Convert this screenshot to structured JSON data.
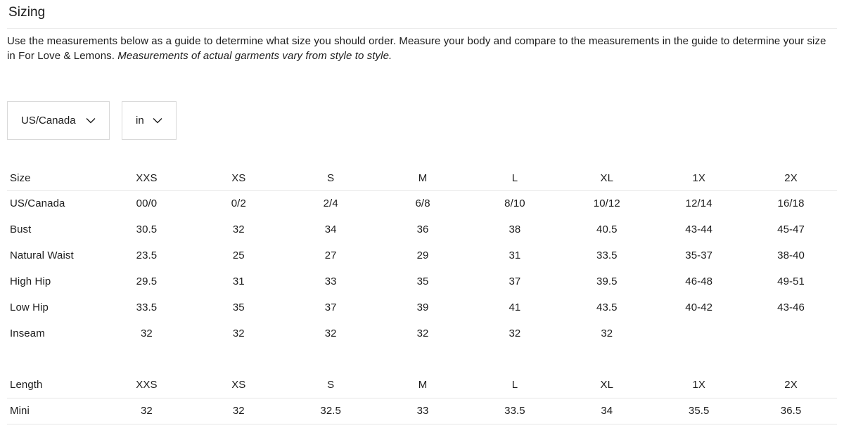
{
  "page": {
    "title": "Sizing",
    "description_regular": "Use the measurements below as a guide to determine what size you should order. Measure your body and compare to the measurements in the guide to determine your size in For Love & Lemons. ",
    "description_italic": "Measurements of actual garments vary from style to style."
  },
  "filters": {
    "region_select": {
      "value": "US/Canada",
      "icon": "chevron-down-icon"
    },
    "unit_select": {
      "value": "in",
      "icon": "chevron-down-icon"
    }
  },
  "size_table": {
    "header": [
      "Size",
      "XXS",
      "XS",
      "S",
      "M",
      "L",
      "XL",
      "1X",
      "2X"
    ],
    "rows": [
      {
        "label": "US/Canada",
        "values": [
          "00/0",
          "0/2",
          "2/4",
          "6/8",
          "8/10",
          "10/12",
          "12/14",
          "16/18"
        ]
      },
      {
        "label": "Bust",
        "values": [
          "30.5",
          "32",
          "34",
          "36",
          "38",
          "40.5",
          "43-44",
          "45-47"
        ]
      },
      {
        "label": "Natural Waist",
        "values": [
          "23.5",
          "25",
          "27",
          "29",
          "31",
          "33.5",
          "35-37",
          "38-40"
        ]
      },
      {
        "label": "High Hip",
        "values": [
          "29.5",
          "31",
          "33",
          "35",
          "37",
          "39.5",
          "46-48",
          "49-51"
        ]
      },
      {
        "label": "Low Hip",
        "values": [
          "33.5",
          "35",
          "37",
          "39",
          "41",
          "43.5",
          "40-42",
          "43-46"
        ]
      },
      {
        "label": "Inseam",
        "values": [
          "32",
          "32",
          "32",
          "32",
          "32",
          "32",
          "",
          ""
        ]
      }
    ]
  },
  "length_table": {
    "header": [
      "Length",
      "XXS",
      "XS",
      "S",
      "M",
      "L",
      "XL",
      "1X",
      "2X"
    ],
    "rows": [
      {
        "label": "Mini",
        "values": [
          "32",
          "32",
          "32.5",
          "33",
          "33.5",
          "34",
          "35.5",
          "36.5"
        ]
      }
    ]
  },
  "colors": {
    "text": "#1c1c1c",
    "divider": "#ececec",
    "table_border": "#e7e7e7",
    "select_border": "#d9d9d9"
  }
}
